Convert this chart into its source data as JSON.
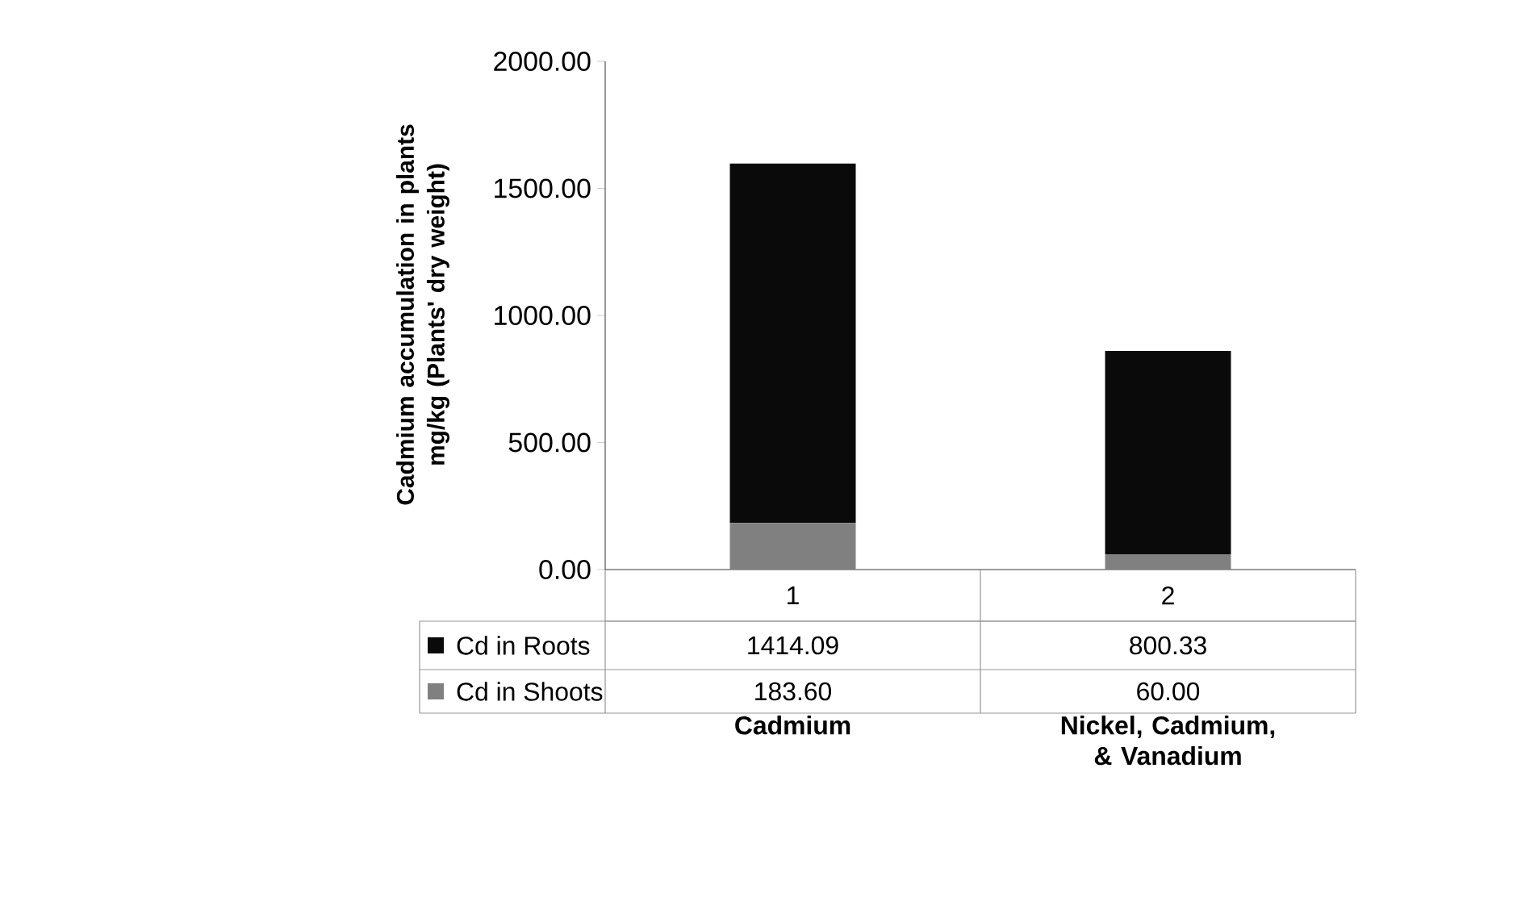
{
  "chart_data": {
    "type": "bar",
    "stacked": true,
    "ylabel": "Cadmium accumulation in plants mg/kg (Plants' dry weight)",
    "categories": [
      "1",
      "2"
    ],
    "legend": "bottom left",
    "series": [
      {
        "name": "Cd in Shoots",
        "color": "#808080",
        "values": [
          183.6,
          60.0
        ],
        "value_labels": [
          "183.60",
          "60.00"
        ]
      },
      {
        "name": "Cd in Roots",
        "color": "#0a0a0a",
        "values": [
          1414.09,
          800.33
        ],
        "value_labels": [
          "1414.09",
          "800.33"
        ]
      }
    ],
    "ylim": [
      0,
      2000
    ],
    "yticks": [
      {
        "value": 0,
        "label": "0.00"
      },
      {
        "value": 500,
        "label": "500.00"
      },
      {
        "value": 1000,
        "label": "1000.00"
      },
      {
        "value": 1500,
        "label": "1500.00"
      },
      {
        "value": 2000,
        "label": "2000.00"
      }
    ],
    "annotations": [
      "Cadmium",
      "Nickel, Cadmium, & Vanadium"
    ]
  }
}
